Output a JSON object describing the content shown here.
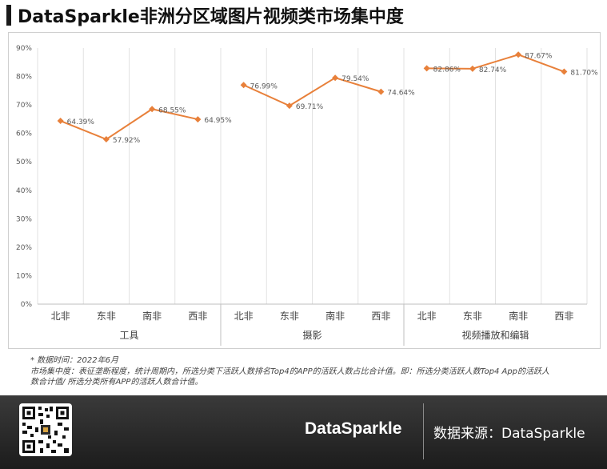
{
  "header": {
    "title": "DataSparkle非洲分区域图片视频类市场集中度"
  },
  "chart_data": {
    "type": "line",
    "ylim": [
      0,
      90
    ],
    "y_ticks": [
      "0%",
      "10%",
      "20%",
      "30%",
      "40%",
      "50%",
      "60%",
      "70%",
      "80%",
      "90%"
    ],
    "y_tick_values": [
      0,
      10,
      20,
      30,
      40,
      50,
      60,
      70,
      80,
      90
    ],
    "grid": "vertical",
    "line_color": "#E8803A",
    "groups": [
      {
        "name": "工具",
        "categories": [
          "北非",
          "东非",
          "南非",
          "西非"
        ],
        "values": [
          64.39,
          57.92,
          68.55,
          64.95
        ],
        "labels": [
          "64.39%",
          "57.92%",
          "68.55%",
          "64.95%"
        ]
      },
      {
        "name": "摄影",
        "categories": [
          "北非",
          "东非",
          "南非",
          "西非"
        ],
        "values": [
          76.99,
          69.71,
          79.54,
          74.64
        ],
        "labels": [
          "76.99%",
          "69.71%",
          "79.54%",
          "74.64%"
        ]
      },
      {
        "name": "视频播放和编辑",
        "categories": [
          "北非",
          "东非",
          "南非",
          "西非"
        ],
        "values": [
          82.86,
          82.74,
          87.67,
          81.7
        ],
        "labels": [
          "82.86%",
          "82.74%",
          "87.67%",
          "81.70%"
        ]
      }
    ]
  },
  "notes": {
    "line1": "* 数据时间：2022年6月",
    "line2": "市场集中度：表征垄断程度，统计周期内，所选分类下活跃人数排名Top4的APP的活跃人数占比合计值。即：所选分类活跃人数Top4 App的活跃人",
    "line3": "数合计值/ 所选分类所有APP的活跃人数合计值。"
  },
  "footer": {
    "brand": "DataSparkle",
    "source": "数据来源：DataSparkle"
  }
}
